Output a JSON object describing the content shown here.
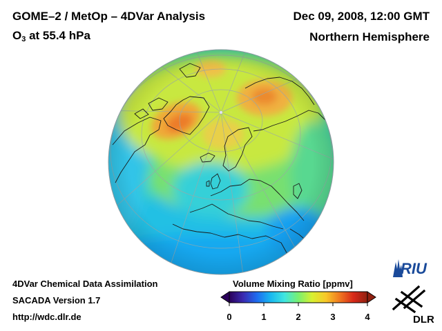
{
  "header": {
    "title": "GOME–2 / MetOp – 4DVar Analysis",
    "species_main": "O",
    "species_sub": "3",
    "level": " at 55.4 hPa",
    "date": "Dec 09, 2008, 12:00 GMT",
    "region": "Northern Hemisphere"
  },
  "footer": {
    "line1": "4DVar Chemical Data Assimilation",
    "line2": "SACADA Version 1.7",
    "line3": "http://wdc.dlr.de"
  },
  "colorbar": {
    "title": "Volume Mixing Ratio [ppmv]",
    "ticks": [
      "0",
      "1",
      "2",
      "3",
      "4"
    ],
    "range": [
      0,
      4
    ],
    "colors": [
      "#2a005a",
      "#3a2ab0",
      "#1e6cf0",
      "#18b8f0",
      "#40e6e0",
      "#78f070",
      "#d8f030",
      "#f8c828",
      "#f07820",
      "#d82818",
      "#902010"
    ]
  },
  "logos": {
    "riu": "RIU",
    "dlr": "DLR"
  },
  "map": {
    "projection": "orthographic, north pole view",
    "ozone_field": {
      "background": "#3cd6b0",
      "high_regions": "Greenland, Siberia",
      "low_region": "North Atlantic"
    }
  }
}
